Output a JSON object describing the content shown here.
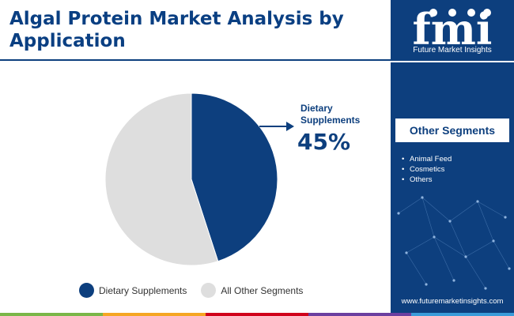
{
  "page": {
    "title": "Algal Protein Market Analysis by Application",
    "website": "www.futuremarketinsights.com"
  },
  "brand": {
    "logo_text": "fmi",
    "tagline": "Future Market Insights",
    "primary_color": "#0d3f7e",
    "title_color": "#0a3f82"
  },
  "chart_data": {
    "type": "pie",
    "title": "Algal Protein Market Analysis by Application",
    "categories": [
      "Dietary Supplements",
      "All Other Segments"
    ],
    "values": [
      45,
      55
    ],
    "colors": [
      "#0d3f7e",
      "#dedede"
    ],
    "callout": {
      "label": "Dietary Supplements",
      "value": "45%"
    },
    "legend": {
      "placement": "bottom",
      "items": [
        {
          "label": "Dietary Supplements",
          "color": "#0d3f7e"
        },
        {
          "label": "All Other Segments",
          "color": "#dedede"
        }
      ]
    }
  },
  "other_segments": {
    "heading": "Other Segments",
    "items": [
      "Animal Feed",
      "Cosmetics",
      "Others"
    ]
  },
  "footer_colors": [
    "#7ab648",
    "#f5a623",
    "#d0021b",
    "#6b3fa0",
    "#3a9bd9"
  ]
}
